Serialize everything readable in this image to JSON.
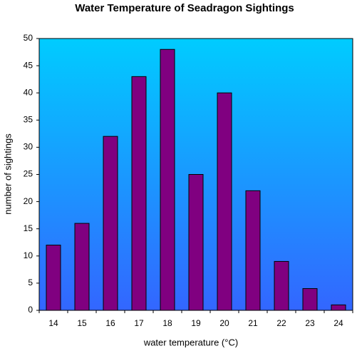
{
  "chart_data": {
    "type": "bar",
    "title": "Water Temperature of Seadragon Sightings",
    "xlabel": "water temperature (°C)",
    "ylabel": "number of sightings",
    "categories": [
      "14",
      "15",
      "16",
      "17",
      "18",
      "19",
      "20",
      "21",
      "22",
      "23",
      "24"
    ],
    "values": [
      12,
      16,
      32,
      43,
      48,
      25,
      40,
      22,
      9,
      4,
      1
    ],
    "ylim": [
      0,
      50
    ],
    "yticks": [
      "0",
      "5",
      "10",
      "15",
      "20",
      "25",
      "30",
      "35",
      "40",
      "45",
      "50"
    ],
    "grid": false,
    "legend": "none",
    "colors": {
      "bar_fill": "#800080",
      "bar_stroke": "#000000",
      "plot_gradient_top": "#00CCFF",
      "plot_gradient_bottom": "#3366FF"
    }
  }
}
